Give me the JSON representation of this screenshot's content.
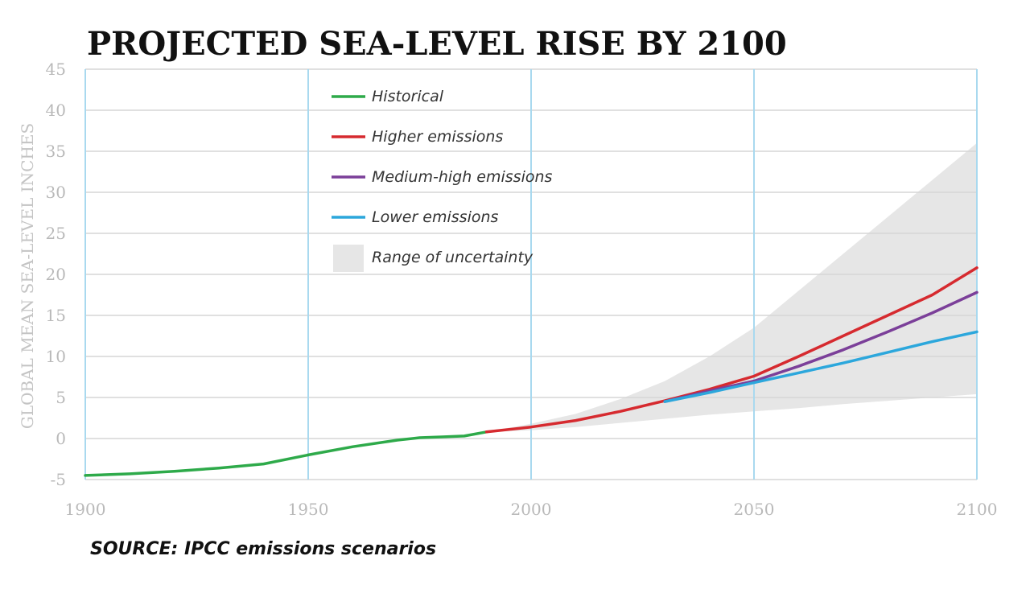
{
  "chart_data": {
    "type": "line",
    "title": "PROJECTED SEA-LEVEL RISE BY 2100",
    "ylabel": "GLOBAL MEAN SEA-LEVEL INCHES",
    "xlabel": "",
    "xlim": [
      1900,
      2100
    ],
    "ylim": [
      -5,
      45
    ],
    "x_ticks": [
      "1900",
      "1950",
      "2000",
      "2050",
      "2100"
    ],
    "y_ticks": [
      "-5",
      "0",
      "5",
      "10",
      "15",
      "20",
      "25",
      "30",
      "35",
      "40",
      "45"
    ],
    "grid": {
      "vertical": true,
      "horizontal": true
    },
    "legend_position": "top-center",
    "series": [
      {
        "name": "Historical",
        "color": "#2eaa4a",
        "points": [
          [
            1900,
            -4.5
          ],
          [
            1910,
            -4.3
          ],
          [
            1920,
            -4.0
          ],
          [
            1930,
            -3.6
          ],
          [
            1940,
            -3.1
          ],
          [
            1950,
            -2.0
          ],
          [
            1960,
            -1.0
          ],
          [
            1970,
            -0.2
          ],
          [
            1975,
            0.1
          ],
          [
            1980,
            0.2
          ],
          [
            1985,
            0.3
          ],
          [
            1990,
            0.8
          ]
        ]
      },
      {
        "name": "Higher emissions",
        "color": "#d62a2f",
        "points": [
          [
            1990,
            0.8
          ],
          [
            2000,
            1.4
          ],
          [
            2010,
            2.2
          ],
          [
            2020,
            3.3
          ],
          [
            2030,
            4.6
          ],
          [
            2040,
            6.0
          ],
          [
            2050,
            7.6
          ],
          [
            2060,
            10.0
          ],
          [
            2070,
            12.5
          ],
          [
            2080,
            15.0
          ],
          [
            2090,
            17.5
          ],
          [
            2100,
            20.8
          ]
        ]
      },
      {
        "name": "Medium-high emissions",
        "color": "#7b3f99",
        "points": [
          [
            2030,
            4.5
          ],
          [
            2040,
            5.8
          ],
          [
            2050,
            7.0
          ],
          [
            2060,
            8.8
          ],
          [
            2070,
            10.8
          ],
          [
            2080,
            13.0
          ],
          [
            2090,
            15.3
          ],
          [
            2100,
            17.8
          ]
        ]
      },
      {
        "name": "Lower emissions",
        "color": "#2ca7dc",
        "points": [
          [
            2030,
            4.5
          ],
          [
            2040,
            5.6
          ],
          [
            2050,
            6.8
          ],
          [
            2060,
            8.0
          ],
          [
            2070,
            9.2
          ],
          [
            2080,
            10.5
          ],
          [
            2090,
            11.8
          ],
          [
            2100,
            13.0
          ]
        ]
      }
    ],
    "uncertainty": {
      "name": "Range of uncertainty",
      "color": "#e6e6e6",
      "upper": [
        [
          1990,
          0.8
        ],
        [
          2000,
          1.8
        ],
        [
          2010,
          3.0
        ],
        [
          2020,
          4.8
        ],
        [
          2030,
          7.0
        ],
        [
          2040,
          10.0
        ],
        [
          2050,
          13.5
        ],
        [
          2060,
          18.0
        ],
        [
          2070,
          22.5
        ],
        [
          2080,
          27.0
        ],
        [
          2090,
          31.5
        ],
        [
          2100,
          36.0
        ]
      ],
      "lower": [
        [
          1990,
          0.8
        ],
        [
          2000,
          1.0
        ],
        [
          2010,
          1.4
        ],
        [
          2020,
          1.9
        ],
        [
          2030,
          2.4
        ],
        [
          2040,
          2.9
        ],
        [
          2050,
          3.3
        ],
        [
          2060,
          3.7
        ],
        [
          2070,
          4.2
        ],
        [
          2080,
          4.6
        ],
        [
          2090,
          5.0
        ],
        [
          2100,
          5.4
        ]
      ]
    },
    "source": "SOURCE: IPCC emissions scenarios"
  },
  "colors": {
    "vertical_grid": "#a9d9ef",
    "horizontal_grid": "#d6d6d6",
    "tick_label": "#b9b9b9"
  }
}
